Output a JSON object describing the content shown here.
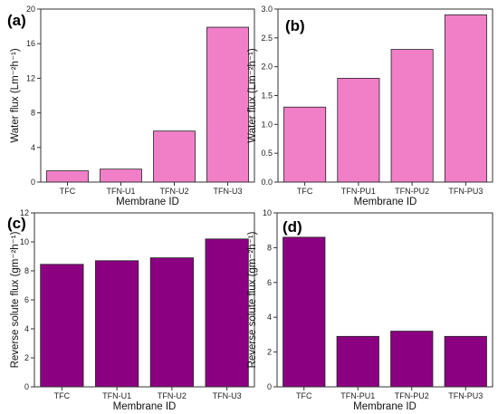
{
  "figure": {
    "panels": [
      "(a)",
      "(b)",
      "(c)",
      "(d)"
    ]
  },
  "colors": {
    "pink": "#F07FC8",
    "purple": "#8B0080",
    "axis": "#333333"
  },
  "chart_data": [
    {
      "panel": "(a)",
      "type": "bar",
      "categories": [
        "TFC",
        "TFN-U1",
        "TFN-U2",
        "TFN-U3"
      ],
      "values": [
        1.3,
        1.5,
        5.9,
        17.9
      ],
      "xlabel": "Membrane ID",
      "ylabel": "Water flux (Lm⁻²h⁻¹)",
      "ylim": [
        0,
        20
      ],
      "yticks": [
        0,
        4,
        8,
        12,
        16,
        20
      ],
      "color": "pink"
    },
    {
      "panel": "(b)",
      "type": "bar",
      "categories": [
        "TFC",
        "TFN-PU1",
        "TFN-PU2",
        "TFN-PU3"
      ],
      "values": [
        1.3,
        1.8,
        2.3,
        2.9
      ],
      "xlabel": "Membrane ID",
      "ylabel": "Water flux (Lm⁻²h⁻¹)",
      "ylim": [
        0,
        3.0
      ],
      "yticks": [
        0.0,
        0.5,
        1.0,
        1.5,
        2.0,
        2.5,
        3.0
      ],
      "ytick_decimals": 1,
      "color": "pink"
    },
    {
      "panel": "(c)",
      "type": "bar",
      "categories": [
        "TFC",
        "TFN-U1",
        "TFN-U2",
        "TFN-U3"
      ],
      "values": [
        8.45,
        8.7,
        8.9,
        10.2
      ],
      "xlabel": "Membrane ID",
      "ylabel": "Reverse solute flux (gm⁻²h⁻¹)",
      "ylim": [
        0,
        12
      ],
      "yticks": [
        0,
        2,
        4,
        6,
        8,
        10,
        12
      ],
      "color": "purple"
    },
    {
      "panel": "(d)",
      "type": "bar",
      "categories": [
        "TFC",
        "TFN-PU1",
        "TFN-PU2",
        "TFN-PU3"
      ],
      "values": [
        8.6,
        2.9,
        3.2,
        2.9
      ],
      "xlabel": "Membrane ID",
      "ylabel": "Reverse solute flux (gm⁻²h⁻¹)",
      "ylim": [
        0,
        10
      ],
      "yticks": [
        0,
        2,
        4,
        6,
        8,
        10
      ],
      "color": "purple"
    }
  ]
}
